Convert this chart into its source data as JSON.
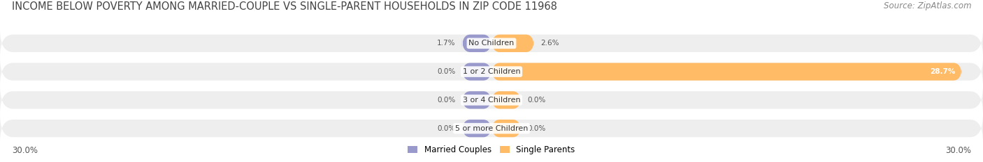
{
  "title": "INCOME BELOW POVERTY AMONG MARRIED-COUPLE VS SINGLE-PARENT HOUSEHOLDS IN ZIP CODE 11968",
  "source": "Source: ZipAtlas.com",
  "categories": [
    "No Children",
    "1 or 2 Children",
    "3 or 4 Children",
    "5 or more Children"
  ],
  "married_values": [
    1.7,
    0.0,
    0.0,
    0.0
  ],
  "single_values": [
    2.6,
    28.7,
    0.0,
    0.0
  ],
  "married_color": "#9999cc",
  "single_color": "#ffbb66",
  "bar_bg_color": "#eeeeee",
  "bar_bg_color2": "#e8e8e8",
  "axis_min": -30.0,
  "axis_max": 30.0,
  "min_bar_width": 1.8,
  "left_label": "30.0%",
  "right_label": "30.0%",
  "legend_married": "Married Couples",
  "legend_single": "Single Parents",
  "title_fontsize": 10.5,
  "source_fontsize": 8.5,
  "axis_label_fontsize": 8.5,
  "category_fontsize": 8,
  "value_fontsize": 7.5,
  "bg_color": "#ffffff"
}
